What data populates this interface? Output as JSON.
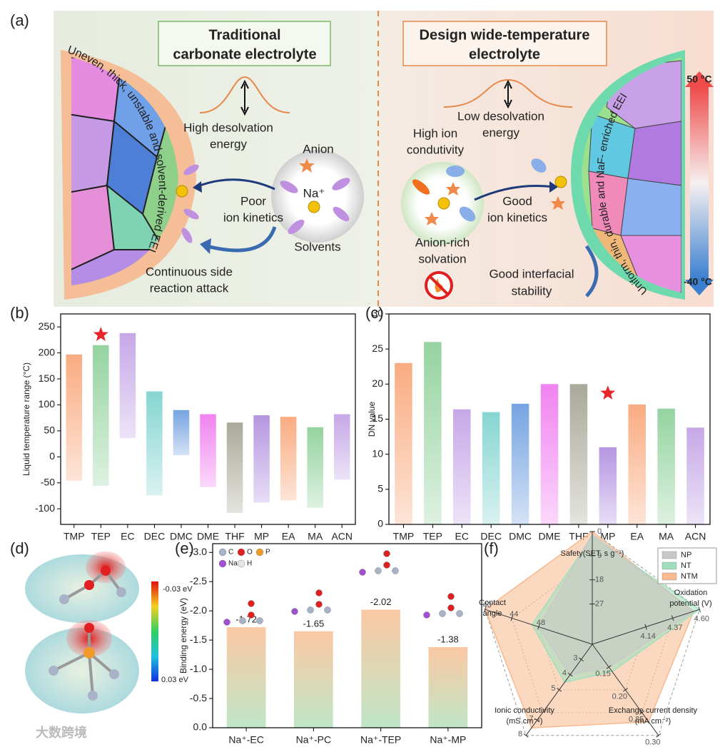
{
  "figure": {
    "panel_labels": [
      "(a)",
      "(b)",
      "(c)",
      "(d)",
      "(e)",
      "(f)"
    ],
    "watermark": "大数跨境"
  },
  "panel_a": {
    "left_title": [
      "Traditional",
      "carbonate electrolyte"
    ],
    "left_energy": [
      "High desolvation",
      "energy"
    ],
    "anion": "Anion",
    "na": "Na⁺",
    "left_kinetics": [
      "Poor",
      "ion kinetics"
    ],
    "solvents": "Solvents",
    "side_reaction": [
      "Continuous side",
      "reaction attack"
    ],
    "left_eei": "Uneven, thick, unstable and solvent-derived EEI",
    "right_title": [
      "Design wide-temperature",
      "electrolyte"
    ],
    "right_energy": [
      "Low desolvation",
      "energy"
    ],
    "conductivity": [
      "High ion",
      "condutivity"
    ],
    "right_kinetics": [
      "Good",
      "ion kinetics"
    ],
    "solvation": [
      "Anion-rich",
      "solvation"
    ],
    "stability": [
      "Good interfacial",
      "stability"
    ],
    "right_eei": "Uniform, thin, durable and NaF- enriched EEI",
    "temp_high": "50 °C",
    "temp_low": "-40 °C"
  },
  "panel_d": {
    "scale_top": "-0.03 eV",
    "scale_bottom": "0.03 eV"
  },
  "chart_data": [
    {
      "type": "floating_bar",
      "ylabel": "Liquid temperature range (°C)",
      "categories": [
        "TMP",
        "TEP",
        "EC",
        "DEC",
        "DMC",
        "DME",
        "THF",
        "MP",
        "EA",
        "MA",
        "ACN"
      ],
      "low": [
        -46,
        -56,
        36,
        -74,
        3,
        -58,
        -108,
        -88,
        -84,
        -98,
        -44
      ],
      "high": [
        197,
        215,
        238,
        126,
        90,
        82,
        66,
        80,
        77,
        57,
        82
      ],
      "colors": [
        "#f9a77a",
        "#8fd19a",
        "#c3a3e6",
        "#7fd3cf",
        "#6f9fe0",
        "#f07cf0",
        "#a5a594",
        "#b190e0",
        "#f9a77a",
        "#8fd19a",
        "#c3a3e6"
      ],
      "ylim": [
        -130,
        275
      ],
      "yticks": [
        -100,
        -50,
        0,
        50,
        100,
        150,
        200,
        250
      ],
      "highlight": {
        "index": 1,
        "value": 235,
        "color": "#e8262a"
      }
    },
    {
      "type": "bar",
      "ylabel": "DN value",
      "categories": [
        "TMP",
        "TEP",
        "EC",
        "DEC",
        "DMC",
        "DME",
        "THF",
        "MP",
        "EA",
        "MA",
        "ACN"
      ],
      "values": [
        23,
        26,
        16.4,
        16,
        17.2,
        20,
        20,
        11,
        17.1,
        16.5,
        13.8
      ],
      "colors": [
        "#f9a77a",
        "#8fd19a",
        "#c3a3e6",
        "#7fd3cf",
        "#6f9fe0",
        "#f07cf0",
        "#a5a594",
        "#b190e0",
        "#f9a77a",
        "#8fd19a",
        "#c3a3e6"
      ],
      "ylim": [
        0,
        30
      ],
      "yticks": [
        0,
        5,
        10,
        15,
        20,
        25,
        30
      ],
      "highlight": {
        "index": 7,
        "value": 18.7,
        "color": "#e8262a"
      }
    },
    {
      "type": "bar",
      "ylabel": "Binding energy (eV)",
      "categories": [
        "Na⁺-EC",
        "Na⁺-PC",
        "Na⁺-TEP",
        "Na⁺-MP"
      ],
      "values": [
        -1.72,
        -1.65,
        -2.02,
        -1.38
      ],
      "gradient": [
        "#fbc8a4",
        "#bfe6c6"
      ],
      "ylim": [
        0,
        -3.15
      ],
      "yticks": [
        {
          "value": -3,
          "label": "-3.0"
        },
        -2.5,
        {
          "value": -2,
          "label": "-2.0"
        },
        -1.5,
        {
          "value": -1,
          "label": "-1.0"
        },
        -0.5,
        {
          "value": 0,
          "label": "0.0"
        }
      ],
      "legend": [
        {
          "name": "C",
          "color": "#a8b3c8"
        },
        {
          "name": "O",
          "color": "#e02020"
        },
        {
          "name": "P",
          "color": "#f09a2a"
        },
        {
          "name": "Na",
          "color": "#a050d0"
        },
        {
          "name": "H",
          "color": "#e6e6e6"
        }
      ]
    },
    {
      "type": "radar",
      "axes": [
        {
          "label": [
            "Safety(SET, s g⁻¹)"
          ],
          "lim": [
            42,
            0
          ],
          "ticks": [
            0,
            9,
            18,
            27
          ]
        },
        {
          "label": [
            "Oxidation",
            "potential (V)"
          ],
          "lim": [
            3.68,
            4.6
          ],
          "ticks": [
            4.14,
            4.37,
            {
              "value": 4.6,
              "label": "4.60"
            }
          ]
        },
        {
          "label": [
            "Exchange current density",
            "(mA cm⁻²)"
          ],
          "lim": [
            0.1,
            0.3
          ],
          "ticks": [
            0.15,
            {
              "value": 0.2,
              "label": "0.20"
            },
            0.25,
            {
              "value": 0.3,
              "label": "0.30"
            }
          ]
        },
        {
          "label": [
            "Ionic conductivity",
            "(mS cm⁻¹)"
          ],
          "lim": [
            2,
            8
          ],
          "ticks": [
            3,
            4,
            5,
            7,
            8
          ]
        },
        {
          "label": [
            "Contact",
            "angle"
          ],
          "lim": [
            56,
            40
          ],
          "ticks": [
            40,
            44,
            48
          ]
        }
      ],
      "series": [
        {
          "name": "NP",
          "color": "#c8c8c8",
          "values": [
            1,
            4.55,
            0.15,
            4,
            48
          ]
        },
        {
          "name": "NT",
          "color": "#9ee0bd",
          "values": [
            2,
            4.6,
            0.16,
            4.5,
            47
          ]
        },
        {
          "name": "NTM",
          "color": "#f7b98e",
          "values": [
            0,
            4.55,
            0.27,
            7.5,
            40
          ]
        }
      ]
    }
  ]
}
